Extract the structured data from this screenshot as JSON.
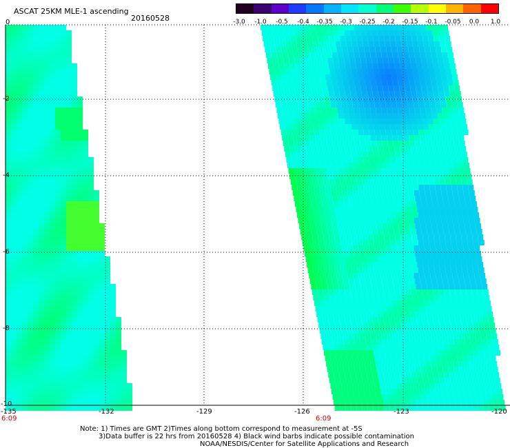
{
  "title": "ASCAT 25KM MLE-1 ascending",
  "date": "20160528",
  "colorbar": {
    "labels": [
      "-3.0",
      "-1.0",
      "-0.5",
      "-0.4",
      "-0.35",
      "-0.3",
      "-0.25",
      "-0.2",
      "-0.15",
      "-0.1",
      "-0.05",
      "0.0",
      "1.0"
    ],
    "colors": [
      "#200020",
      "#3c0070",
      "#5a00c8",
      "#1e3cff",
      "#0078ff",
      "#00b4ff",
      "#00e6ff",
      "#00ffd2",
      "#00ff78",
      "#3cff00",
      "#b4ff00",
      "#ffff00",
      "#ffb400",
      "#ff6400",
      "#ff0000"
    ]
  },
  "axes": {
    "x_ticks": [
      "-135",
      "-132",
      "-129",
      "-126",
      "-123",
      "-120"
    ],
    "y_ticks": [
      "0",
      "-2",
      "-4",
      "-6",
      "-8",
      "-10"
    ],
    "time_labels": [
      "6:09",
      "6:09"
    ]
  },
  "notes": {
    "line1": "Note: 1) Times are GMT 2)Times along bottom correspond to measurement at -5S",
    "line2": "3)Data buffer is 22 hrs from 20160528 4) Black wind barbs indicate possible contamination",
    "line3": "NOAA/NESDIS/Center for Satellite Applications and Research"
  },
  "colors": {
    "cyan": "#00ffe6",
    "blue": "#0a7cff",
    "green": "#00ff50",
    "yellow_green": "#aaff00"
  }
}
